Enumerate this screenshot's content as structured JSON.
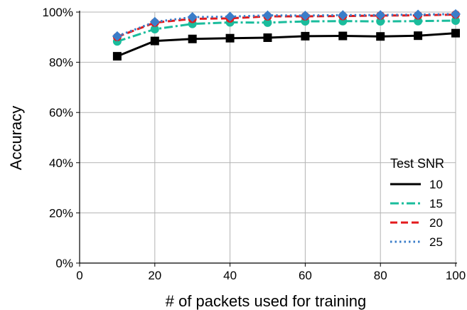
{
  "chart_data": {
    "type": "line",
    "xlabel": "# of packets used for training",
    "ylabel": "Accuracy",
    "xlim": [
      0,
      100
    ],
    "ylim": [
      0,
      100
    ],
    "x_ticks": [
      0,
      20,
      40,
      60,
      80,
      100
    ],
    "x_tick_labels": [
      "0",
      "20",
      "40",
      "60",
      "80",
      "100"
    ],
    "y_ticks": [
      0,
      20,
      40,
      60,
      80,
      100
    ],
    "y_tick_labels": [
      "0%",
      "20%",
      "40%",
      "60%",
      "80%",
      "100%"
    ],
    "grid": true,
    "legend": {
      "title": "Test SNR",
      "placement": "lower-right"
    },
    "x": [
      10,
      20,
      30,
      40,
      50,
      60,
      70,
      80,
      90,
      100
    ],
    "series": [
      {
        "name": "10",
        "color": "#000000",
        "dash": "solid",
        "marker": "square",
        "values": [
          82.4,
          88.5,
          89.3,
          89.6,
          89.8,
          90.4,
          90.5,
          90.3,
          90.6,
          91.6
        ]
      },
      {
        "name": "15",
        "color": "#1abc9c",
        "dash": "dashdot",
        "marker": "circle",
        "values": [
          88.3,
          93.2,
          95.3,
          95.9,
          95.8,
          96.3,
          96.4,
          96.3,
          96.4,
          96.6
        ]
      },
      {
        "name": "20",
        "color": "#e31a1c",
        "dash": "dashed",
        "marker": "circle",
        "values": [
          90.1,
          95.8,
          97.3,
          97.5,
          98.3,
          98.3,
          98.4,
          98.6,
          98.7,
          99.0
        ]
      },
      {
        "name": "25",
        "color": "#3a7dc9",
        "dash": "dotted",
        "marker": "diamond",
        "values": [
          90.4,
          96.1,
          98.0,
          98.2,
          98.7,
          98.6,
          98.8,
          98.8,
          99.0,
          99.2
        ]
      }
    ]
  }
}
